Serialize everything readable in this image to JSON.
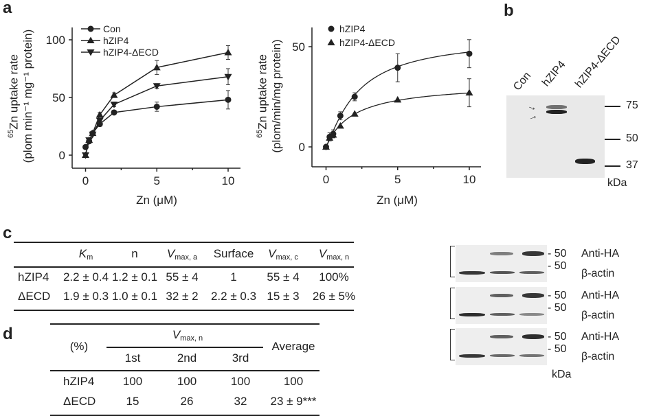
{
  "panels": {
    "a": "a",
    "b": "b",
    "c": "c",
    "d": "d"
  },
  "chart_data": [
    {
      "type": "line",
      "xlabel": "Zn (μM)",
      "ylabel_sup": "65",
      "ylabel_main": "Zn uptake rate",
      "ylabel_units": "(plom min⁻¹ mg⁻¹ protein)",
      "xlim": [
        -0.5,
        10.5
      ],
      "ylim": [
        -8,
        110
      ],
      "xticks": [
        0,
        5,
        10
      ],
      "yticks": [
        0,
        50,
        100
      ],
      "legend_position": "top-left",
      "x": [
        0,
        0.25,
        0.5,
        1,
        2,
        5,
        10
      ],
      "series": [
        {
          "name": "Con",
          "marker": "circle",
          "values": [
            7,
            12,
            19,
            27,
            37,
            42,
            48
          ],
          "errors": [
            1,
            1,
            1,
            2,
            1,
            4,
            8
          ]
        },
        {
          "name": "hZIP4",
          "marker": "triangle-up",
          "values": [
            0,
            13,
            19,
            35,
            52,
            76,
            89
          ],
          "errors": [
            1,
            1,
            1,
            2,
            2,
            6,
            6
          ]
        },
        {
          "name": "hZIP4-ΔECD",
          "marker": "triangle-down",
          "values": [
            0,
            13,
            18,
            30,
            44,
            60,
            68
          ],
          "errors": [
            1,
            1,
            1,
            2,
            2,
            2,
            7
          ]
        }
      ]
    },
    {
      "type": "scatter",
      "xlabel": "Zn (μM)",
      "ylabel_sup": "65",
      "ylabel_main": "Zn uptake rate",
      "ylabel_units": "(plom/min/mg protein)",
      "xlim": [
        -0.5,
        10.5
      ],
      "ylim": [
        -10,
        60
      ],
      "xticks": [
        0,
        5,
        10
      ],
      "yticks": [
        0,
        50
      ],
      "legend_position": "top-left",
      "fit_curve": true,
      "x": [
        0,
        0.25,
        0.5,
        1,
        2,
        5,
        10
      ],
      "series": [
        {
          "name": "hZIP4",
          "marker": "circle",
          "values": [
            0,
            5,
            6.5,
            15.5,
            25,
            39.5,
            46.5
          ],
          "errors": [
            0.5,
            2,
            2,
            2,
            2,
            7,
            7
          ],
          "fit": {
            "vmax": 55,
            "km": 2.2,
            "n": 1.2
          }
        },
        {
          "name": "hZIP4-ΔECD",
          "marker": "triangle-up",
          "values": [
            0,
            4.5,
            6,
            10.5,
            16.5,
            23.5,
            27
          ],
          "errors": [
            0.5,
            1.5,
            1.5,
            1.5,
            1.5,
            1.5,
            7
          ],
          "fit": {
            "vmax": 32,
            "km": 1.9,
            "n": 1.0
          }
        }
      ]
    }
  ],
  "blot_b": {
    "lanes": [
      "Con",
      "hZIP4",
      "hZIP4-ΔECD"
    ],
    "markers": [
      "75",
      "50",
      "37"
    ],
    "unit": "kDa"
  },
  "table_c": {
    "headers": [
      {
        "main": "K",
        "sub": "m"
      },
      {
        "main": "n",
        "sub": ""
      },
      {
        "main": "V",
        "sub": "max, a"
      },
      {
        "main": "Surface",
        "sub": ""
      },
      {
        "main": "V",
        "sub": "max, c"
      },
      {
        "main": "V",
        "sub": "max, n"
      }
    ],
    "rows": [
      {
        "label": "hZIP4",
        "cells": [
          "2.2 ± 0.4",
          "1.2 ± 0.1",
          "55 ± 4",
          "1",
          "55 ± 4",
          "100%"
        ]
      },
      {
        "label": "ΔECD",
        "cells": [
          "1.9 ± 0.3",
          "1.0 ± 0.1",
          "32 ± 2",
          "2.2 ± 0.3",
          "15 ± 3",
          "26 ± 5%"
        ]
      }
    ]
  },
  "table_d": {
    "unit": "(%)",
    "group": {
      "main": "V",
      "sub": "max, n"
    },
    "subheaders": [
      "1st",
      "2nd",
      "3rd"
    ],
    "average": "Average",
    "rows": [
      {
        "label": "hZIP4",
        "cells": [
          "100",
          "100",
          "100",
          "100"
        ]
      },
      {
        "label": "ΔECD",
        "cells": [
          "15",
          "26",
          "32",
          "23 ± 9***"
        ]
      }
    ]
  },
  "blots_c": {
    "marker": "50",
    "anti": "Anti-HA",
    "actin": "β-actin",
    "unit": "kDa"
  }
}
